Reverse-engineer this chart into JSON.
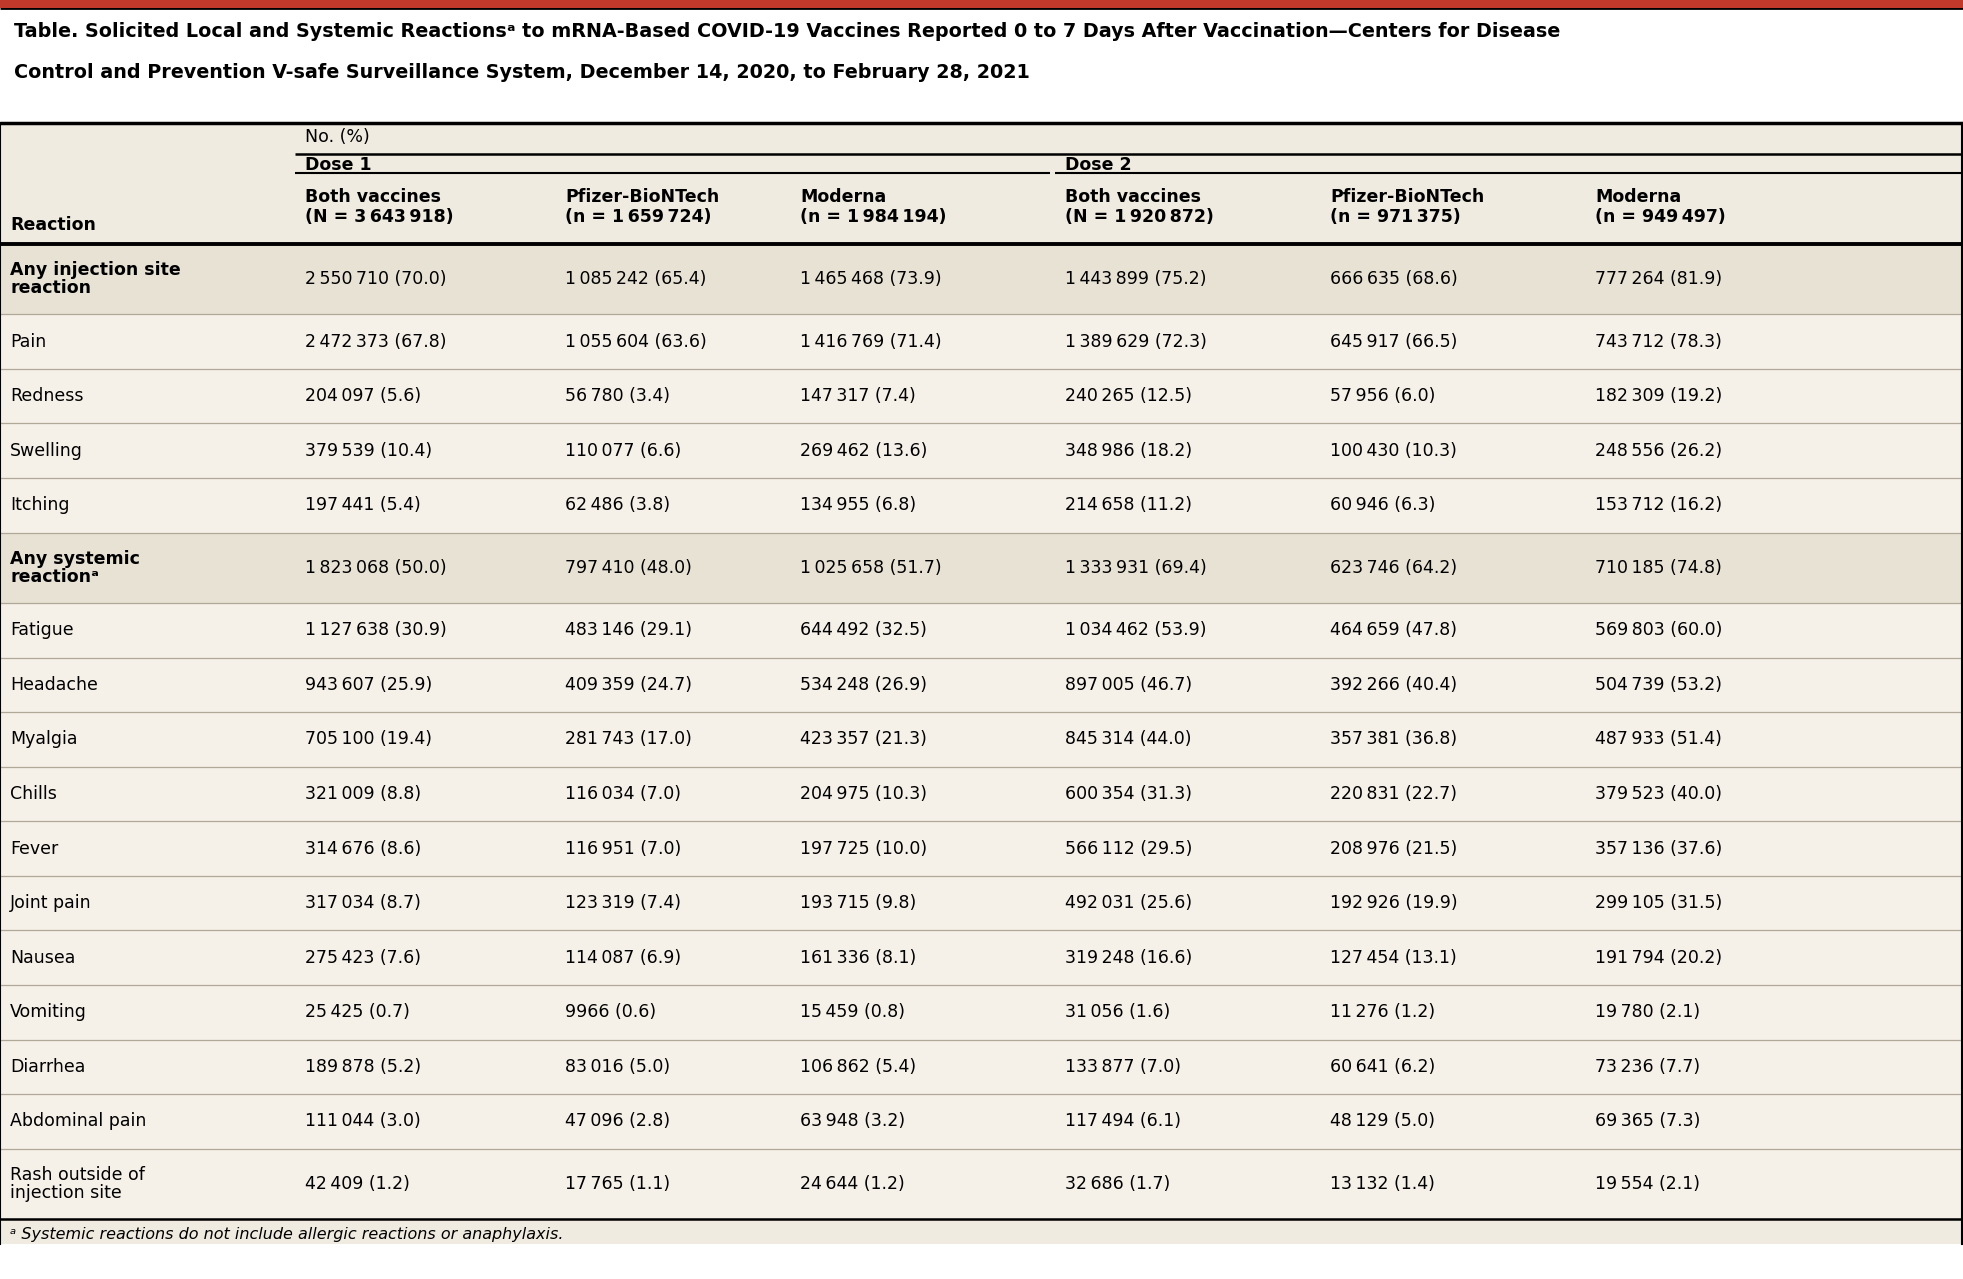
{
  "title_line1": "Table. Solicited Local and Systemic Reactionsᵃ to mRNA-Based COVID-19 Vaccines Reported 0 to 7 Days After Vaccination—Centers for Disease",
  "title_line2": "Control and Prevention V-safe Surveillance System, December 14, 2020, to February 28, 2021",
  "top_bar_color": "#c0392b",
  "header_bg": "#f0ebe0",
  "title_bg": "#ffffff",
  "bold_row_bg": "#e8e2d4",
  "normal_row_bg": "#f5f0e8",
  "border_color": "#000000",
  "light_border": "#b0a898",
  "text_color": "#000000",
  "no_pct_label": "No. (%)",
  "dose1_label": "Dose 1",
  "dose2_label": "Dose 2",
  "col_headers": [
    [
      "Both vaccines",
      "(N = 3 643 918)"
    ],
    [
      "Pfizer-BioNTech",
      "(n = 1 659 724)"
    ],
    [
      "Moderna",
      "(n = 1 984 194)"
    ],
    [
      "Both vaccines",
      "(N = 1 920 872)"
    ],
    [
      "Pfizer-BioNTech",
      "(n = 971 375)"
    ],
    [
      "Moderna",
      "(n = 949 497)"
    ]
  ],
  "reaction_label": "Reaction",
  "rows": [
    {
      "reaction": "Any injection site\nreaction",
      "bold": true,
      "values": [
        "2 550 710 (70.0)",
        "1 085 242 (65.4)",
        "1 465 468 (73.9)",
        "1 443 899 (75.2)",
        "666 635 (68.6)",
        "777 264 (81.9)"
      ]
    },
    {
      "reaction": "Pain",
      "bold": false,
      "values": [
        "2 472 373 (67.8)",
        "1 055 604 (63.6)",
        "1 416 769 (71.4)",
        "1 389 629 (72.3)",
        "645 917 (66.5)",
        "743 712 (78.3)"
      ]
    },
    {
      "reaction": "Redness",
      "bold": false,
      "values": [
        "204 097 (5.6)",
        "56 780 (3.4)",
        "147 317 (7.4)",
        "240 265 (12.5)",
        "57 956 (6.0)",
        "182 309 (19.2)"
      ]
    },
    {
      "reaction": "Swelling",
      "bold": false,
      "values": [
        "379 539 (10.4)",
        "110 077 (6.6)",
        "269 462 (13.6)",
        "348 986 (18.2)",
        "100 430 (10.3)",
        "248 556 (26.2)"
      ]
    },
    {
      "reaction": "Itching",
      "bold": false,
      "values": [
        "197 441 (5.4)",
        "62 486 (3.8)",
        "134 955 (6.8)",
        "214 658 (11.2)",
        "60 946 (6.3)",
        "153 712 (16.2)"
      ]
    },
    {
      "reaction": "Any systemic\nreactionᵃ",
      "bold": true,
      "values": [
        "1 823 068 (50.0)",
        "797 410 (48.0)",
        "1 025 658 (51.7)",
        "1 333 931 (69.4)",
        "623 746 (64.2)",
        "710 185 (74.8)"
      ]
    },
    {
      "reaction": "Fatigue",
      "bold": false,
      "values": [
        "1 127 638 (30.9)",
        "483 146 (29.1)",
        "644 492 (32.5)",
        "1 034 462 (53.9)",
        "464 659 (47.8)",
        "569 803 (60.0)"
      ]
    },
    {
      "reaction": "Headache",
      "bold": false,
      "values": [
        "943 607 (25.9)",
        "409 359 (24.7)",
        "534 248 (26.9)",
        "897 005 (46.7)",
        "392 266 (40.4)",
        "504 739 (53.2)"
      ]
    },
    {
      "reaction": "Myalgia",
      "bold": false,
      "values": [
        "705 100 (19.4)",
        "281 743 (17.0)",
        "423 357 (21.3)",
        "845 314 (44.0)",
        "357 381 (36.8)",
        "487 933 (51.4)"
      ]
    },
    {
      "reaction": "Chills",
      "bold": false,
      "values": [
        "321 009 (8.8)",
        "116 034 (7.0)",
        "204 975 (10.3)",
        "600 354 (31.3)",
        "220 831 (22.7)",
        "379 523 (40.0)"
      ]
    },
    {
      "reaction": "Fever",
      "bold": false,
      "values": [
        "314 676 (8.6)",
        "116 951 (7.0)",
        "197 725 (10.0)",
        "566 112 (29.5)",
        "208 976 (21.5)",
        "357 136 (37.6)"
      ]
    },
    {
      "reaction": "Joint pain",
      "bold": false,
      "values": [
        "317 034 (8.7)",
        "123 319 (7.4)",
        "193 715 (9.8)",
        "492 031 (25.6)",
        "192 926 (19.9)",
        "299 105 (31.5)"
      ]
    },
    {
      "reaction": "Nausea",
      "bold": false,
      "values": [
        "275 423 (7.6)",
        "114 087 (6.9)",
        "161 336 (8.1)",
        "319 248 (16.6)",
        "127 454 (13.1)",
        "191 794 (20.2)"
      ]
    },
    {
      "reaction": "Vomiting",
      "bold": false,
      "values": [
        "25 425 (0.7)",
        "9966 (0.6)",
        "15 459 (0.8)",
        "31 056 (1.6)",
        "11 276 (1.2)",
        "19 780 (2.1)"
      ]
    },
    {
      "reaction": "Diarrhea",
      "bold": false,
      "values": [
        "189 878 (5.2)",
        "83 016 (5.0)",
        "106 862 (5.4)",
        "133 877 (7.0)",
        "60 641 (6.2)",
        "73 236 (7.7)"
      ]
    },
    {
      "reaction": "Abdominal pain",
      "bold": false,
      "values": [
        "111 044 (3.0)",
        "47 096 (2.8)",
        "63 948 (3.2)",
        "117 494 (6.1)",
        "48 129 (5.0)",
        "69 365 (7.3)"
      ]
    },
    {
      "reaction": "Rash outside of\ninjection site",
      "bold": false,
      "values": [
        "42 409 (1.2)",
        "17 765 (1.1)",
        "24 644 (1.2)",
        "32 686 (1.7)",
        "13 132 (1.4)",
        "19 554 (2.1)"
      ]
    }
  ],
  "footnote": "ᵃ Systemic reactions do not include allergic reactions or anaphylaxis."
}
